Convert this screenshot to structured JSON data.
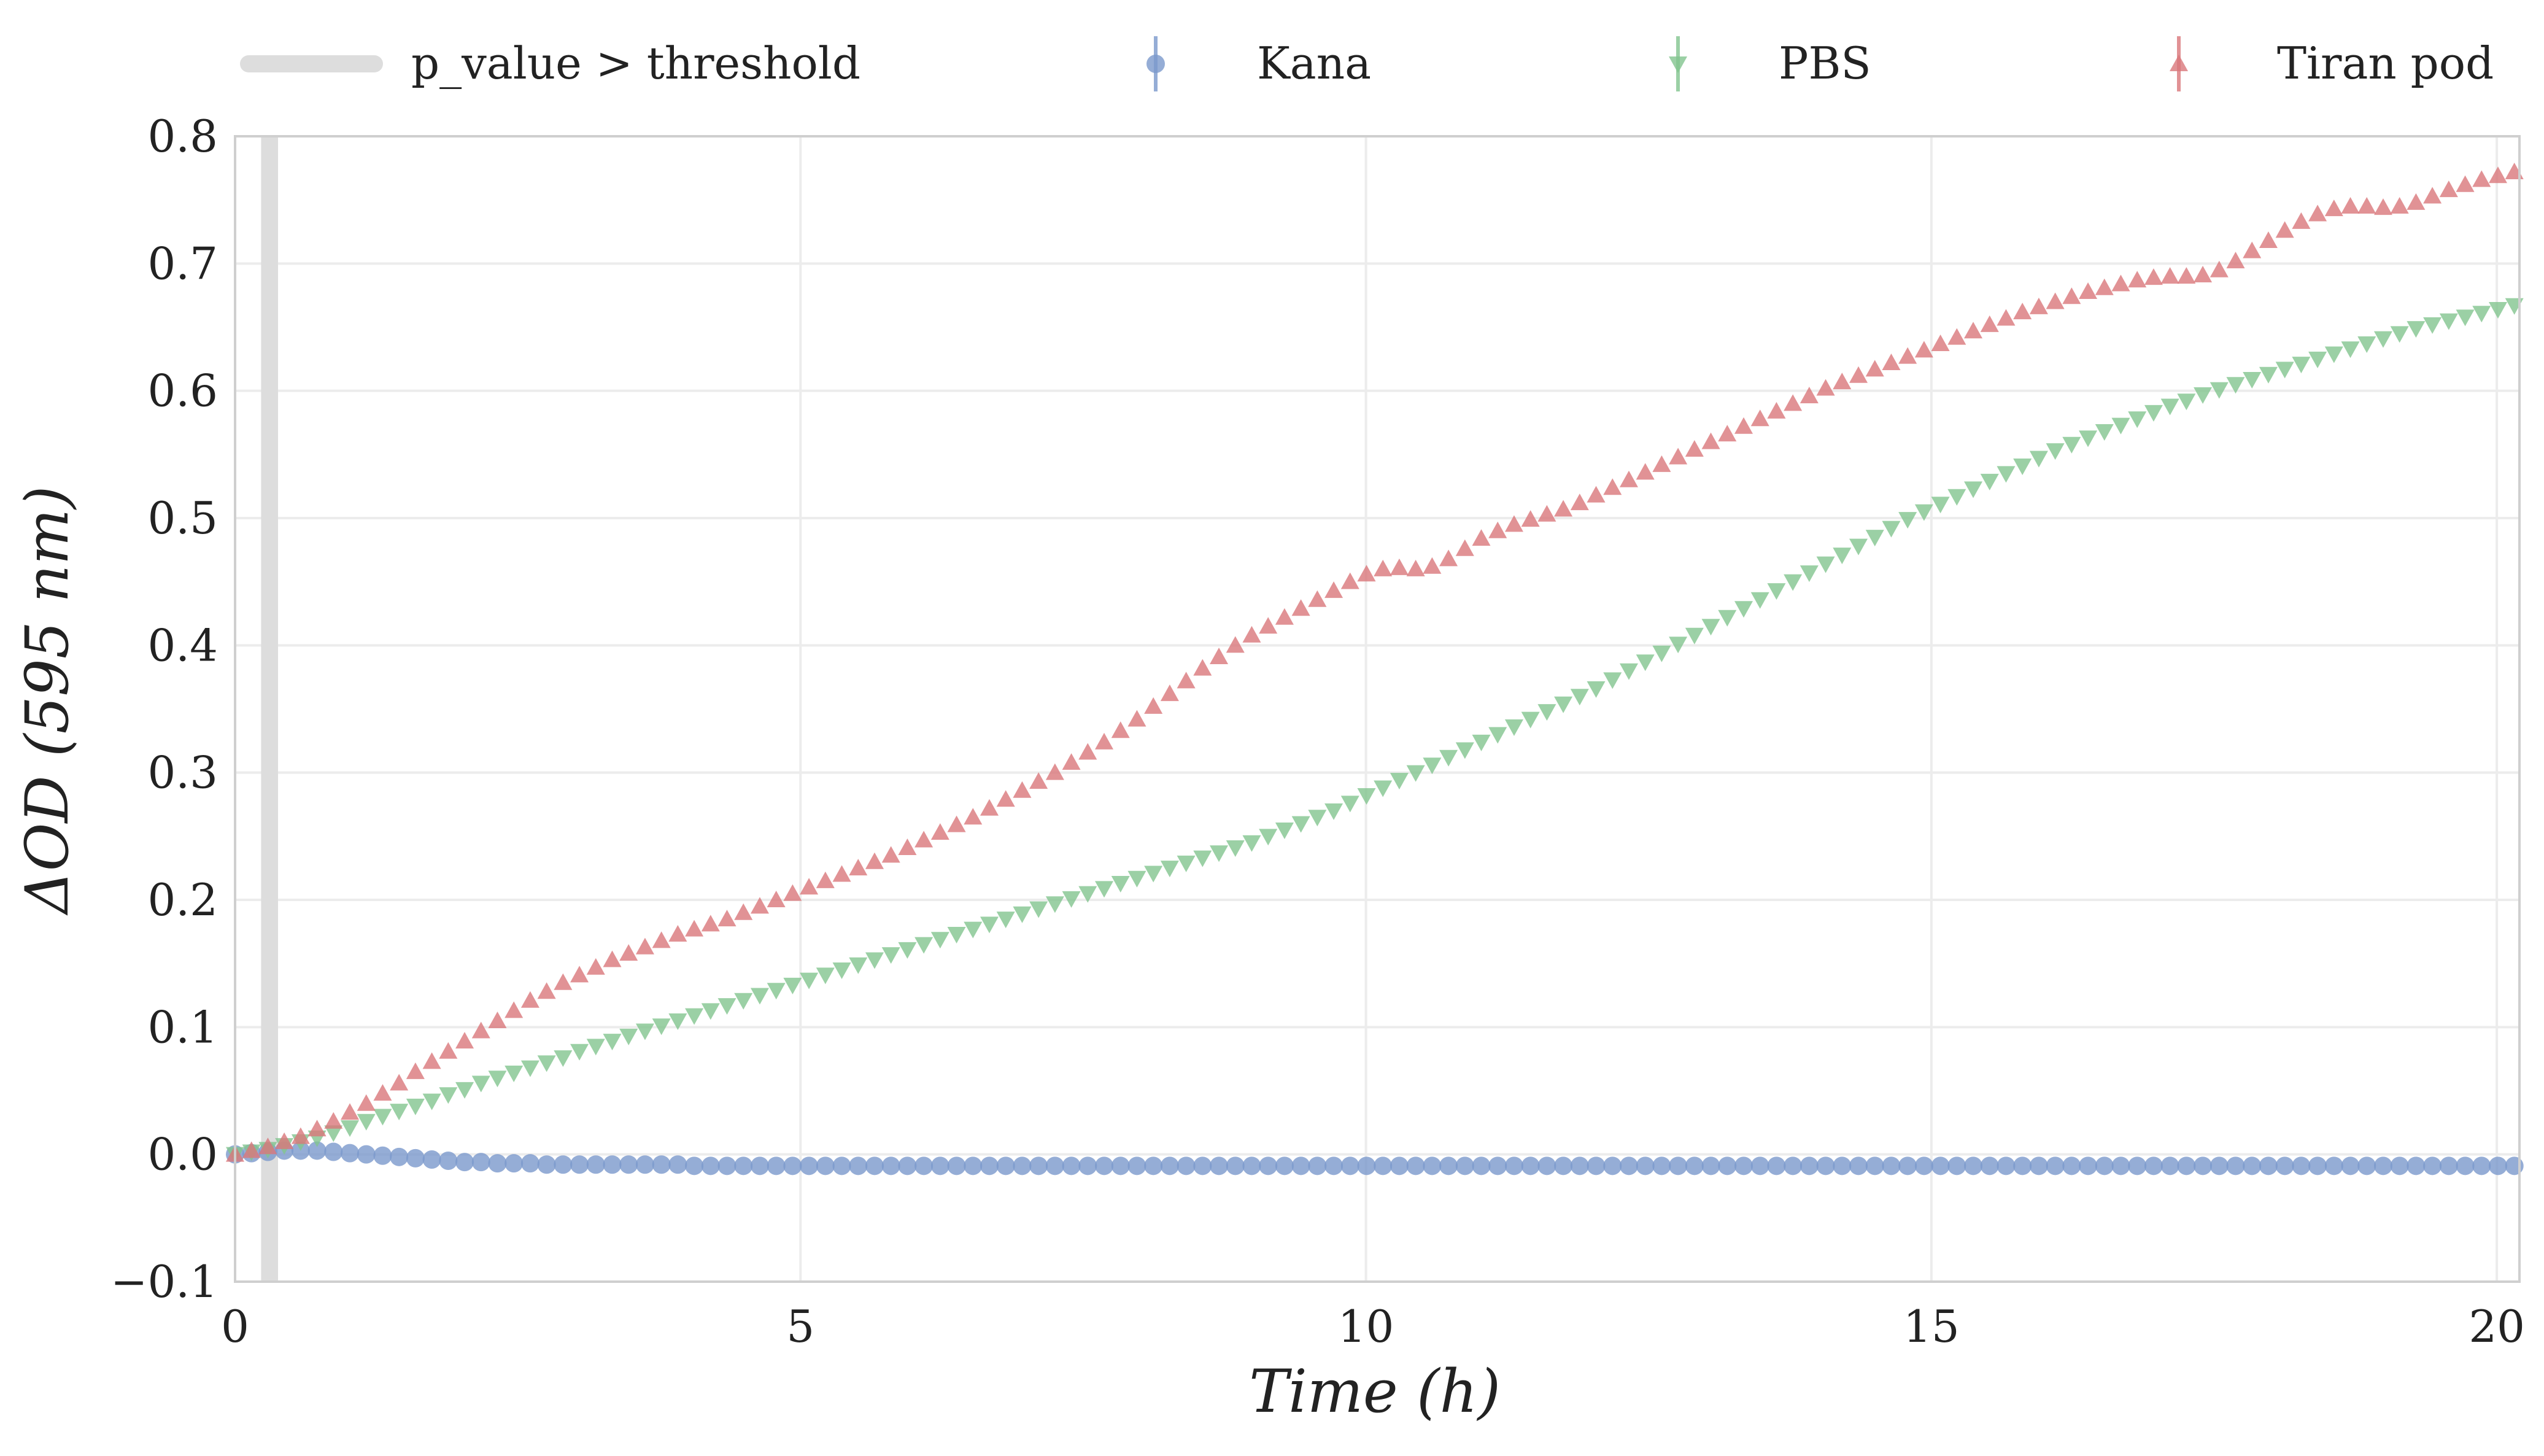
{
  "chart_data": {
    "type": "scatter",
    "title": "",
    "xlabel": "Time (h)",
    "ylabel": "ΔOD (595 nm)",
    "xlim": [
      0,
      20.2
    ],
    "ylim": [
      -0.1,
      0.8
    ],
    "xticks": [
      0,
      5,
      10,
      15,
      20
    ],
    "xtick_labels": [
      "0",
      "5",
      "10",
      "15",
      "20"
    ],
    "yticks": [
      -0.1,
      0.0,
      0.1,
      0.2,
      0.3,
      0.4,
      0.5,
      0.6,
      0.7,
      0.8
    ],
    "ytick_labels": [
      "−0.1",
      "0.0",
      "0.1",
      "0.2",
      "0.3",
      "0.4",
      "0.5",
      "0.6",
      "0.7",
      "0.8"
    ],
    "grid": true,
    "legend_position": "top",
    "shaded_region": {
      "label": "p_value > threshold",
      "x_range": [
        0.23,
        0.38
      ],
      "color": "#dddddd"
    },
    "series": [
      {
        "name": "Kana",
        "marker": "circle",
        "color": "#7b98cc",
        "x_start": 0.0,
        "x_step": 0.145,
        "values": [
          0.0,
          0.001,
          0.002,
          0.003,
          0.003,
          0.003,
          0.002,
          0.001,
          0.0,
          -0.001,
          -0.002,
          -0.003,
          -0.004,
          -0.005,
          -0.006,
          -0.006,
          -0.007,
          -0.007,
          -0.007,
          -0.008,
          -0.008,
          -0.008,
          -0.008,
          -0.008,
          -0.008,
          -0.008,
          -0.008,
          -0.008,
          -0.009,
          -0.009,
          -0.009,
          -0.009,
          -0.009,
          -0.009,
          -0.009,
          -0.009,
          -0.009,
          -0.009,
          -0.009,
          -0.009,
          -0.009,
          -0.009,
          -0.009,
          -0.009,
          -0.009,
          -0.009,
          -0.009,
          -0.009,
          -0.009,
          -0.009,
          -0.009,
          -0.009,
          -0.009,
          -0.009,
          -0.009,
          -0.009,
          -0.009,
          -0.009,
          -0.009,
          -0.009,
          -0.009,
          -0.009,
          -0.009,
          -0.009,
          -0.009,
          -0.009,
          -0.009,
          -0.009,
          -0.009,
          -0.009,
          -0.009,
          -0.009,
          -0.009,
          -0.009,
          -0.009,
          -0.009,
          -0.009,
          -0.009,
          -0.009,
          -0.009,
          -0.009,
          -0.009,
          -0.009,
          -0.009,
          -0.009,
          -0.009,
          -0.009,
          -0.009,
          -0.009,
          -0.009,
          -0.009,
          -0.009,
          -0.009,
          -0.009,
          -0.009,
          -0.009,
          -0.009,
          -0.009,
          -0.009,
          -0.009,
          -0.009,
          -0.009,
          -0.009,
          -0.009,
          -0.009,
          -0.009,
          -0.009,
          -0.009,
          -0.009,
          -0.009,
          -0.009,
          -0.009,
          -0.009,
          -0.009,
          -0.009,
          -0.009,
          -0.009,
          -0.009,
          -0.009,
          -0.009,
          -0.009,
          -0.009,
          -0.009,
          -0.009,
          -0.009,
          -0.009,
          -0.009,
          -0.009,
          -0.009,
          -0.009,
          -0.009,
          -0.009,
          -0.009,
          -0.009,
          -0.009,
          -0.009,
          -0.009,
          -0.009,
          -0.009,
          -0.009
        ]
      },
      {
        "name": "PBS",
        "marker": "triangle-down",
        "color": "#82c48f",
        "x_start": 0.0,
        "x_step": 0.145,
        "values": [
          0.0,
          0.002,
          0.004,
          0.007,
          0.01,
          0.013,
          0.017,
          0.021,
          0.026,
          0.03,
          0.034,
          0.038,
          0.042,
          0.047,
          0.051,
          0.056,
          0.06,
          0.064,
          0.068,
          0.072,
          0.076,
          0.081,
          0.085,
          0.089,
          0.093,
          0.097,
          0.101,
          0.105,
          0.109,
          0.113,
          0.117,
          0.121,
          0.125,
          0.129,
          0.133,
          0.137,
          0.141,
          0.145,
          0.149,
          0.153,
          0.157,
          0.161,
          0.165,
          0.169,
          0.173,
          0.177,
          0.181,
          0.185,
          0.189,
          0.193,
          0.197,
          0.201,
          0.205,
          0.209,
          0.213,
          0.217,
          0.221,
          0.225,
          0.229,
          0.233,
          0.237,
          0.241,
          0.245,
          0.25,
          0.255,
          0.26,
          0.265,
          0.27,
          0.276,
          0.282,
          0.288,
          0.294,
          0.3,
          0.306,
          0.312,
          0.318,
          0.324,
          0.33,
          0.336,
          0.342,
          0.348,
          0.354,
          0.36,
          0.366,
          0.373,
          0.38,
          0.387,
          0.394,
          0.401,
          0.408,
          0.415,
          0.422,
          0.429,
          0.436,
          0.443,
          0.45,
          0.457,
          0.464,
          0.471,
          0.478,
          0.485,
          0.492,
          0.499,
          0.505,
          0.511,
          0.517,
          0.523,
          0.529,
          0.535,
          0.541,
          0.547,
          0.553,
          0.558,
          0.563,
          0.568,
          0.573,
          0.578,
          0.583,
          0.588,
          0.592,
          0.597,
          0.601,
          0.605,
          0.609,
          0.613,
          0.617,
          0.621,
          0.625,
          0.629,
          0.633,
          0.637,
          0.641,
          0.645,
          0.649,
          0.652,
          0.655,
          0.658,
          0.661,
          0.664,
          0.667,
          0.67
        ]
      },
      {
        "name": "Tiran pod",
        "marker": "triangle-up",
        "color": "#d9777a",
        "x_start": 0.0,
        "x_step": 0.145,
        "values": [
          0.0,
          0.003,
          0.006,
          0.01,
          0.014,
          0.02,
          0.026,
          0.033,
          0.04,
          0.048,
          0.056,
          0.065,
          0.073,
          0.081,
          0.089,
          0.097,
          0.105,
          0.113,
          0.121,
          0.128,
          0.135,
          0.141,
          0.147,
          0.153,
          0.158,
          0.163,
          0.168,
          0.173,
          0.177,
          0.181,
          0.185,
          0.19,
          0.195,
          0.2,
          0.205,
          0.21,
          0.215,
          0.22,
          0.225,
          0.23,
          0.235,
          0.241,
          0.247,
          0.253,
          0.259,
          0.265,
          0.272,
          0.279,
          0.286,
          0.293,
          0.3,
          0.308,
          0.316,
          0.324,
          0.333,
          0.342,
          0.352,
          0.362,
          0.372,
          0.382,
          0.391,
          0.4,
          0.408,
          0.415,
          0.422,
          0.429,
          0.436,
          0.443,
          0.45,
          0.456,
          0.46,
          0.461,
          0.46,
          0.462,
          0.468,
          0.476,
          0.484,
          0.49,
          0.495,
          0.499,
          0.503,
          0.507,
          0.512,
          0.518,
          0.524,
          0.53,
          0.536,
          0.542,
          0.548,
          0.554,
          0.56,
          0.566,
          0.572,
          0.578,
          0.584,
          0.59,
          0.596,
          0.602,
          0.607,
          0.612,
          0.617,
          0.622,
          0.627,
          0.632,
          0.637,
          0.642,
          0.647,
          0.652,
          0.657,
          0.662,
          0.666,
          0.67,
          0.674,
          0.678,
          0.681,
          0.684,
          0.687,
          0.689,
          0.69,
          0.69,
          0.691,
          0.695,
          0.702,
          0.71,
          0.718,
          0.726,
          0.733,
          0.739,
          0.743,
          0.745,
          0.745,
          0.744,
          0.745,
          0.748,
          0.753,
          0.758,
          0.762,
          0.766,
          0.769,
          0.772,
          0.775
        ]
      }
    ]
  }
}
